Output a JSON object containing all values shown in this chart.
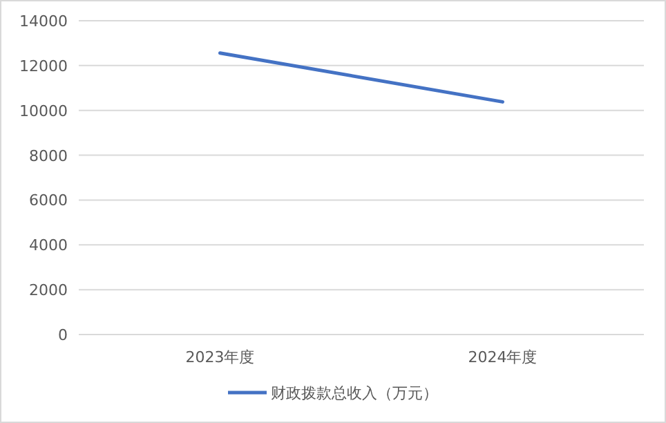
{
  "chart_data": {
    "type": "line",
    "categories": [
      "2023年度",
      "2024年度"
    ],
    "series": [
      {
        "name": "财政拨款总收入（万元）",
        "color": "#4472c4",
        "values": [
          12560,
          10380
        ]
      }
    ],
    "ylim": [
      0,
      14000
    ],
    "yticks": [
      0,
      2000,
      4000,
      6000,
      8000,
      10000,
      12000,
      14000
    ],
    "grid": "y",
    "legend": "bottom",
    "marker": "none",
    "line_style": "solid"
  }
}
